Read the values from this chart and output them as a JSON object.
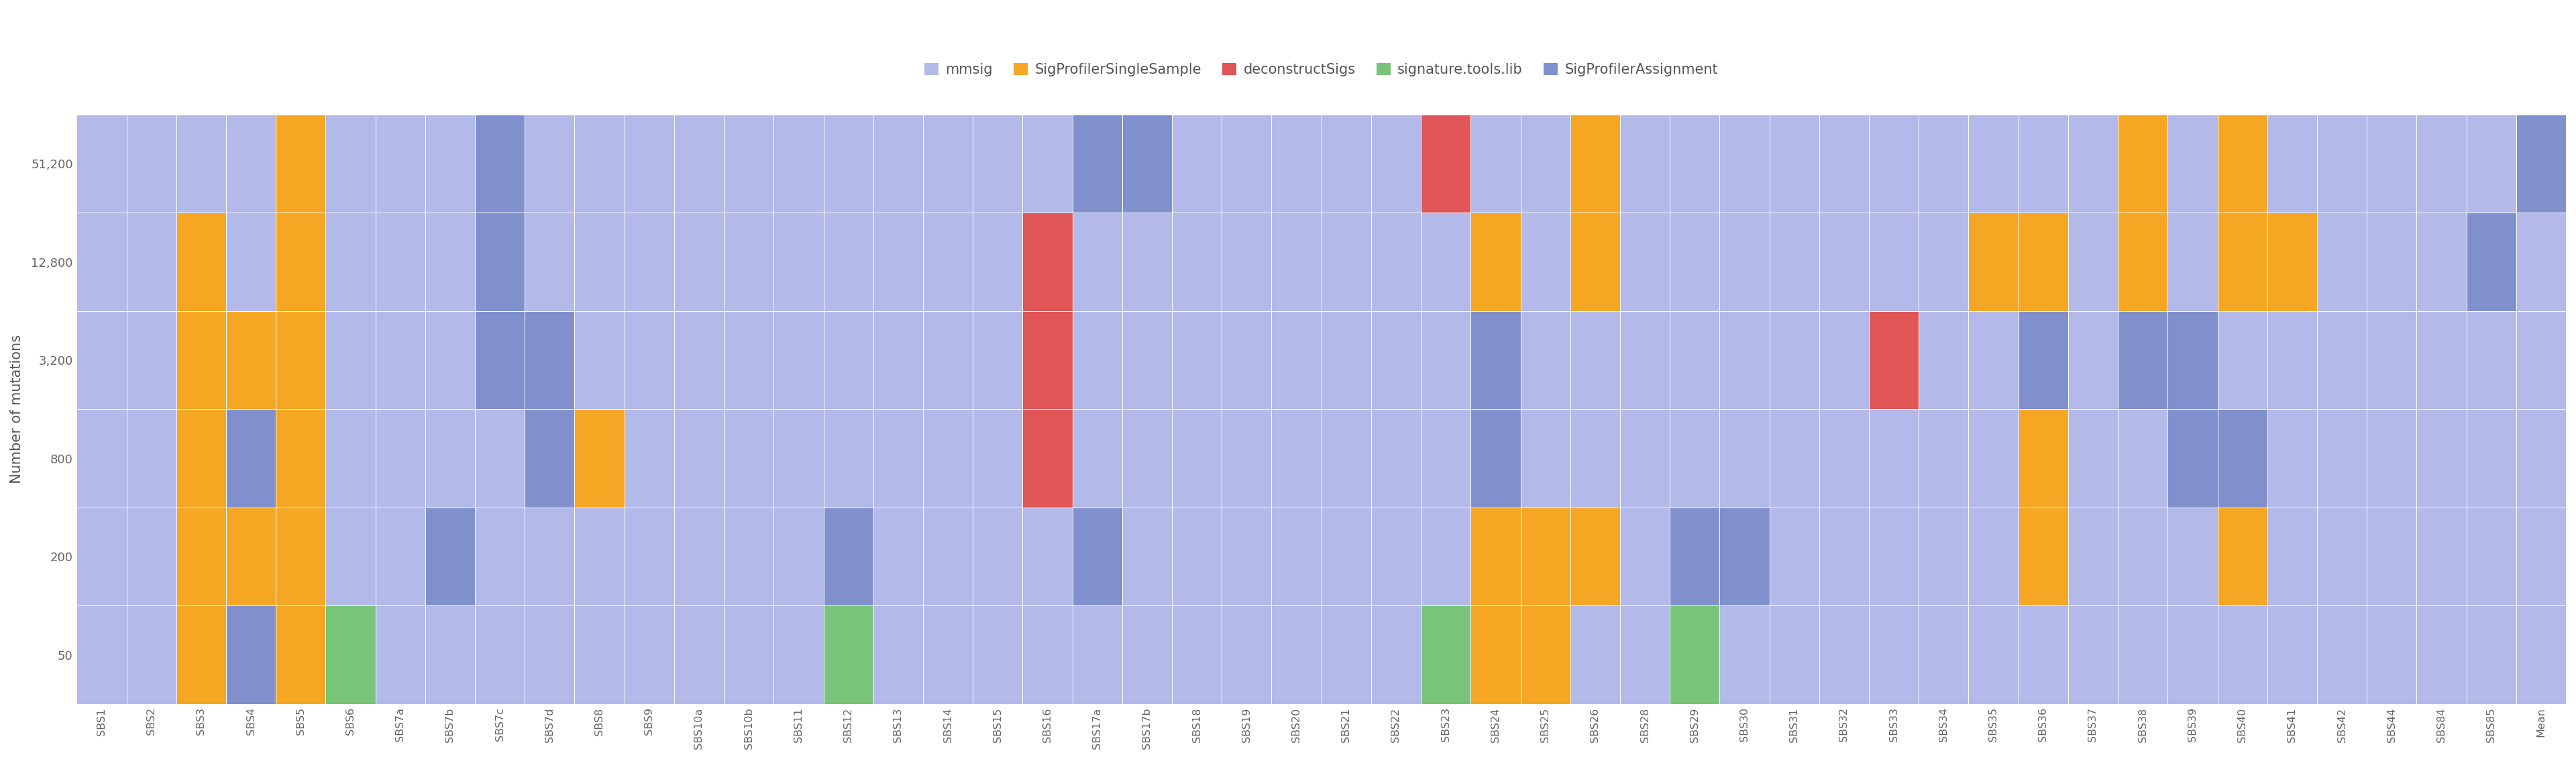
{
  "signatures": [
    "SBS1",
    "SBS2",
    "SBS3",
    "SBS4",
    "SBS5",
    "SBS6",
    "SBS7a",
    "SBS7b",
    "SBS7c",
    "SBS7d",
    "SBS8",
    "SBS9",
    "SBS10a",
    "SBS10b",
    "SBS11",
    "SBS12",
    "SBS13",
    "SBS14",
    "SBS15",
    "SBS16",
    "SBS17a",
    "SBS17b",
    "SBS18",
    "SBS19",
    "SBS20",
    "SBS21",
    "SBS22",
    "SBS23",
    "SBS24",
    "SBS25",
    "SBS26",
    "SBS28",
    "SBS29",
    "SBS30",
    "SBS31",
    "SBS32",
    "SBS33",
    "SBS34",
    "SBS35",
    "SBS36",
    "SBS37",
    "SBS38",
    "SBS39",
    "SBS40",
    "SBS41",
    "SBS42",
    "SBS44",
    "SBS84",
    "SBS85",
    "Mean"
  ],
  "mut_levels": [
    50,
    200,
    800,
    3200,
    12800,
    51200
  ],
  "mut_labels": [
    "50",
    "200",
    "800",
    "3,200",
    "12,800",
    "51,200"
  ],
  "data": {
    "SBS1": {
      "50": "mmsig",
      "200": "mmsig",
      "800": "mmsig",
      "3200": "mmsig",
      "12800": "mmsig",
      "51200": "mmsig"
    },
    "SBS2": {
      "50": "mmsig",
      "200": "mmsig",
      "800": "mmsig",
      "3200": "mmsig",
      "12800": "mmsig",
      "51200": "mmsig"
    },
    "SBS3": {
      "50": "SigProfilerSingleSample",
      "200": "SigProfilerSingleSample",
      "800": "SigProfilerSingleSample",
      "3200": "SigProfilerSingleSample",
      "12800": "SigProfilerSingleSample",
      "51200": "mmsig"
    },
    "SBS4": {
      "50": "SigProfilerAssignment",
      "200": "SigProfilerSingleSample",
      "800": "SigProfilerAssignment",
      "3200": "SigProfilerSingleSample",
      "12800": "mmsig",
      "51200": "mmsig"
    },
    "SBS5": {
      "50": "SigProfilerSingleSample",
      "200": "SigProfilerSingleSample",
      "800": "SigProfilerSingleSample",
      "3200": "SigProfilerSingleSample",
      "12800": "SigProfilerSingleSample",
      "51200": "SigProfilerSingleSample"
    },
    "SBS6": {
      "50": "signature.tools.lib",
      "200": "mmsig",
      "800": "mmsig",
      "3200": "mmsig",
      "12800": "mmsig",
      "51200": "mmsig"
    },
    "SBS7a": {
      "50": "mmsig",
      "200": "mmsig",
      "800": "mmsig",
      "3200": "mmsig",
      "12800": "mmsig",
      "51200": "mmsig"
    },
    "SBS7b": {
      "50": "mmsig",
      "200": "SigProfilerAssignment",
      "800": "mmsig",
      "3200": "mmsig",
      "12800": "mmsig",
      "51200": "mmsig"
    },
    "SBS7c": {
      "50": "mmsig",
      "200": "mmsig",
      "800": "mmsig",
      "3200": "SigProfilerAssignment",
      "12800": "SigProfilerAssignment",
      "51200": "SigProfilerAssignment"
    },
    "SBS7d": {
      "50": "mmsig",
      "200": "mmsig",
      "800": "SigProfilerAssignment",
      "3200": "SigProfilerAssignment",
      "12800": "mmsig",
      "51200": "mmsig"
    },
    "SBS8": {
      "50": "mmsig",
      "200": "mmsig",
      "800": "SigProfilerSingleSample",
      "3200": "mmsig",
      "12800": "mmsig",
      "51200": "mmsig"
    },
    "SBS9": {
      "50": "mmsig",
      "200": "mmsig",
      "800": "mmsig",
      "3200": "mmsig",
      "12800": "mmsig",
      "51200": "mmsig"
    },
    "SBS10a": {
      "50": "mmsig",
      "200": "mmsig",
      "800": "mmsig",
      "3200": "mmsig",
      "12800": "mmsig",
      "51200": "mmsig"
    },
    "SBS10b": {
      "50": "mmsig",
      "200": "mmsig",
      "800": "mmsig",
      "3200": "mmsig",
      "12800": "mmsig",
      "51200": "mmsig"
    },
    "SBS11": {
      "50": "mmsig",
      "200": "mmsig",
      "800": "mmsig",
      "3200": "mmsig",
      "12800": "mmsig",
      "51200": "mmsig"
    },
    "SBS12": {
      "50": "signature.tools.lib",
      "200": "SigProfilerAssignment",
      "800": "mmsig",
      "3200": "mmsig",
      "12800": "mmsig",
      "51200": "mmsig"
    },
    "SBS13": {
      "50": "mmsig",
      "200": "mmsig",
      "800": "mmsig",
      "3200": "mmsig",
      "12800": "mmsig",
      "51200": "mmsig"
    },
    "SBS14": {
      "50": "mmsig",
      "200": "mmsig",
      "800": "mmsig",
      "3200": "mmsig",
      "12800": "mmsig",
      "51200": "mmsig"
    },
    "SBS15": {
      "50": "mmsig",
      "200": "mmsig",
      "800": "mmsig",
      "3200": "mmsig",
      "12800": "mmsig",
      "51200": "mmsig"
    },
    "SBS16": {
      "50": "mmsig",
      "200": "mmsig",
      "800": "deconstructSigs",
      "3200": "deconstructSigs",
      "12800": "deconstructSigs",
      "51200": "mmsig"
    },
    "SBS17a": {
      "50": "mmsig",
      "200": "SigProfilerAssignment",
      "800": "mmsig",
      "3200": "mmsig",
      "12800": "mmsig",
      "51200": "SigProfilerAssignment"
    },
    "SBS17b": {
      "50": "mmsig",
      "200": "mmsig",
      "800": "mmsig",
      "3200": "mmsig",
      "12800": "mmsig",
      "51200": "SigProfilerAssignment"
    },
    "SBS18": {
      "50": "mmsig",
      "200": "mmsig",
      "800": "mmsig",
      "3200": "mmsig",
      "12800": "mmsig",
      "51200": "mmsig"
    },
    "SBS19": {
      "50": "mmsig",
      "200": "mmsig",
      "800": "mmsig",
      "3200": "mmsig",
      "12800": "mmsig",
      "51200": "mmsig"
    },
    "SBS20": {
      "50": "mmsig",
      "200": "mmsig",
      "800": "mmsig",
      "3200": "mmsig",
      "12800": "mmsig",
      "51200": "mmsig"
    },
    "SBS21": {
      "50": "mmsig",
      "200": "mmsig",
      "800": "mmsig",
      "3200": "mmsig",
      "12800": "mmsig",
      "51200": "mmsig"
    },
    "SBS22": {
      "50": "mmsig",
      "200": "mmsig",
      "800": "mmsig",
      "3200": "mmsig",
      "12800": "mmsig",
      "51200": "mmsig"
    },
    "SBS23": {
      "50": "signature.tools.lib",
      "200": "mmsig",
      "800": "mmsig",
      "3200": "mmsig",
      "12800": "mmsig",
      "51200": "deconstructSigs"
    },
    "SBS24": {
      "50": "SigProfilerSingleSample",
      "200": "SigProfilerSingleSample",
      "800": "SigProfilerAssignment",
      "3200": "SigProfilerAssignment",
      "12800": "SigProfilerSingleSample",
      "51200": "mmsig"
    },
    "SBS25": {
      "50": "SigProfilerSingleSample",
      "200": "SigProfilerSingleSample",
      "800": "mmsig",
      "3200": "mmsig",
      "12800": "mmsig",
      "51200": "mmsig"
    },
    "SBS26": {
      "50": "mmsig",
      "200": "SigProfilerSingleSample",
      "800": "mmsig",
      "3200": "mmsig",
      "12800": "SigProfilerSingleSample",
      "51200": "SigProfilerSingleSample"
    },
    "SBS28": {
      "50": "mmsig",
      "200": "mmsig",
      "800": "mmsig",
      "3200": "mmsig",
      "12800": "mmsig",
      "51200": "mmsig"
    },
    "SBS29": {
      "50": "signature.tools.lib",
      "200": "SigProfilerAssignment",
      "800": "mmsig",
      "3200": "mmsig",
      "12800": "mmsig",
      "51200": "mmsig"
    },
    "SBS30": {
      "50": "mmsig",
      "200": "SigProfilerAssignment",
      "800": "mmsig",
      "3200": "mmsig",
      "12800": "mmsig",
      "51200": "mmsig"
    },
    "SBS31": {
      "50": "mmsig",
      "200": "mmsig",
      "800": "mmsig",
      "3200": "mmsig",
      "12800": "mmsig",
      "51200": "mmsig"
    },
    "SBS32": {
      "50": "mmsig",
      "200": "mmsig",
      "800": "mmsig",
      "3200": "mmsig",
      "12800": "mmsig",
      "51200": "mmsig"
    },
    "SBS33": {
      "50": "mmsig",
      "200": "mmsig",
      "800": "mmsig",
      "3200": "deconstructSigs",
      "12800": "mmsig",
      "51200": "mmsig"
    },
    "SBS34": {
      "50": "mmsig",
      "200": "mmsig",
      "800": "mmsig",
      "3200": "mmsig",
      "12800": "mmsig",
      "51200": "mmsig"
    },
    "SBS35": {
      "50": "mmsig",
      "200": "mmsig",
      "800": "mmsig",
      "3200": "mmsig",
      "12800": "SigProfilerSingleSample",
      "51200": "mmsig"
    },
    "SBS36": {
      "50": "mmsig",
      "200": "SigProfilerSingleSample",
      "800": "SigProfilerSingleSample",
      "3200": "SigProfilerAssignment",
      "12800": "SigProfilerSingleSample",
      "51200": "mmsig"
    },
    "SBS37": {
      "50": "mmsig",
      "200": "mmsig",
      "800": "mmsig",
      "3200": "mmsig",
      "12800": "mmsig",
      "51200": "mmsig"
    },
    "SBS38": {
      "50": "mmsig",
      "200": "mmsig",
      "800": "mmsig",
      "3200": "SigProfilerAssignment",
      "12800": "SigProfilerSingleSample",
      "51200": "SigProfilerSingleSample"
    },
    "SBS39": {
      "50": "mmsig",
      "200": "mmsig",
      "800": "SigProfilerAssignment",
      "3200": "SigProfilerAssignment",
      "12800": "mmsig",
      "51200": "mmsig"
    },
    "SBS40": {
      "50": "mmsig",
      "200": "SigProfilerSingleSample",
      "800": "SigProfilerAssignment",
      "3200": "mmsig",
      "12800": "SigProfilerSingleSample",
      "51200": "SigProfilerSingleSample"
    },
    "SBS41": {
      "50": "mmsig",
      "200": "mmsig",
      "800": "mmsig",
      "3200": "mmsig",
      "12800": "SigProfilerSingleSample",
      "51200": "mmsig"
    },
    "SBS42": {
      "50": "mmsig",
      "200": "mmsig",
      "800": "mmsig",
      "3200": "mmsig",
      "12800": "mmsig",
      "51200": "mmsig"
    },
    "SBS44": {
      "50": "mmsig",
      "200": "mmsig",
      "800": "mmsig",
      "3200": "mmsig",
      "12800": "mmsig",
      "51200": "mmsig"
    },
    "SBS84": {
      "50": "mmsig",
      "200": "mmsig",
      "800": "mmsig",
      "3200": "mmsig",
      "12800": "mmsig",
      "51200": "mmsig"
    },
    "SBS85": {
      "50": "mmsig",
      "200": "mmsig",
      "800": "mmsig",
      "3200": "mmsig",
      "12800": "SigProfilerAssignment",
      "51200": "mmsig"
    },
    "Mean": {
      "50": "mmsig",
      "200": "mmsig",
      "800": "mmsig",
      "3200": "mmsig",
      "12800": "mmsig",
      "51200": "SigProfilerAssignment"
    }
  },
  "tool_colors": {
    "mmsig": "#b3b9e8",
    "SigProfilerSingleSample": "#f5a623",
    "deconstructSigs": "#e05555",
    "signature.tools.lib": "#78c478",
    "SigProfilerAssignment": "#8090cc"
  },
  "ylabel": "Number of mutations",
  "background_color": "#ffffff",
  "plot_bg_color": "#c8cde8"
}
